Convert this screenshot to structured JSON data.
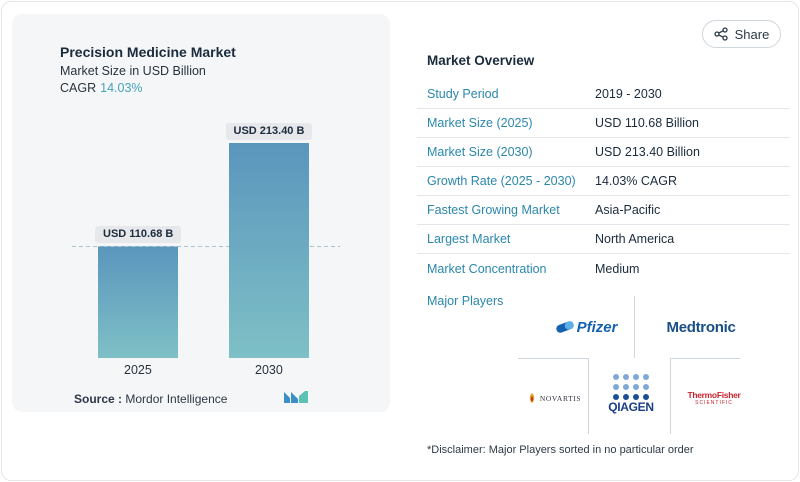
{
  "chart_card": {
    "title": "Precision Medicine Market",
    "subtitle": "Market Size in USD Billion",
    "cagr_label": "CAGR",
    "cagr_value": "14.03%",
    "source_label": "Source :",
    "source_value": "Mordor Intelligence"
  },
  "chart_data": {
    "type": "bar",
    "categories": [
      "2025",
      "2030"
    ],
    "values": [
      110.68,
      213.4
    ],
    "data_labels": [
      "USD 110.68 B",
      "USD 213.40 B"
    ],
    "ylim": [
      0,
      213.4
    ],
    "colors": {
      "bar_top": "#5a96bd",
      "bar_bottom": "#7ec0c6",
      "reference_line": "#a9c4cf"
    }
  },
  "share_button": {
    "label": "Share",
    "icon": "share-icon"
  },
  "overview": {
    "title": "Market Overview",
    "rows": [
      {
        "label": "Study Period",
        "value": "2019 - 2030"
      },
      {
        "label": "Market Size (2025)",
        "value": "USD 110.68 Billion"
      },
      {
        "label": "Market Size (2030)",
        "value": "USD 213.40 Billion"
      },
      {
        "label": "Growth Rate (2025 - 2030)",
        "value": "14.03% CAGR"
      },
      {
        "label": "Fastest Growing Market",
        "value": "Asia-Pacific"
      },
      {
        "label": "Largest Market",
        "value": "North America"
      },
      {
        "label": "Market Concentration",
        "value": "Medium"
      }
    ]
  },
  "players": {
    "label": "Major Players",
    "logos": {
      "pfizer": "Pfizer",
      "medtronic": "Medtronic",
      "novartis": "NOVARTIS",
      "qiagen": "QIAGEN",
      "thermo_line1": "ThermoFisher",
      "thermo_line2": "SCIENTIFIC"
    }
  },
  "disclaimer": "*Disclaimer: Major Players sorted in no particular order",
  "colors": {
    "accent": "#2b87ad",
    "cagr": "#46a3b8",
    "card_bg": "#f5f6f8"
  }
}
